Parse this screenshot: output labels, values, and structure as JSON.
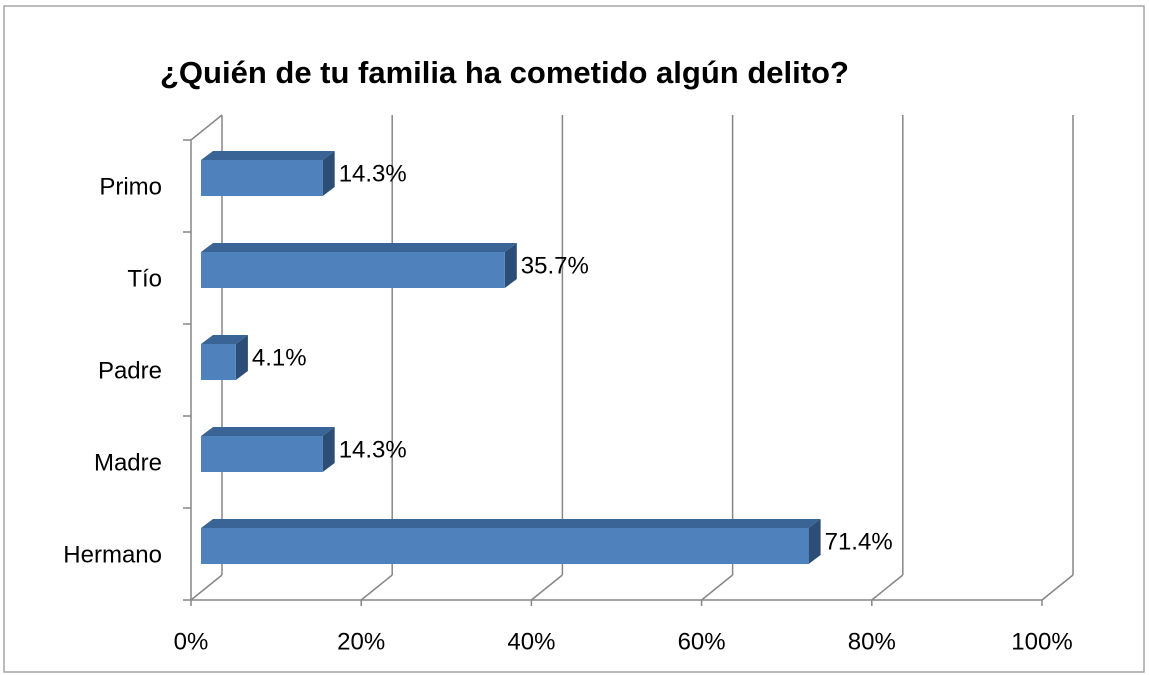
{
  "chart_data": {
    "type": "bar3d_horizontal",
    "title": "¿Quién de tu familia ha cometido algún delito?",
    "categories": [
      "Primo",
      "Tío",
      "Padre",
      "Madre",
      "Hermano"
    ],
    "values": [
      14.3,
      35.7,
      4.1,
      14.3,
      71.4
    ],
    "value_labels": [
      "14.3%",
      "35.7%",
      "4.1%",
      "14.3%",
      "71.4%"
    ],
    "color": "#4f81bd",
    "xlim": [
      0,
      100
    ],
    "xticks": [
      {
        "value": 0,
        "label": "0%"
      },
      {
        "value": 20,
        "label": "20%"
      },
      {
        "value": 40,
        "label": "40%"
      },
      {
        "value": 60,
        "label": "60%"
      },
      {
        "value": 80,
        "label": "80%"
      },
      {
        "value": 100,
        "label": "100%"
      }
    ],
    "grid": true
  }
}
